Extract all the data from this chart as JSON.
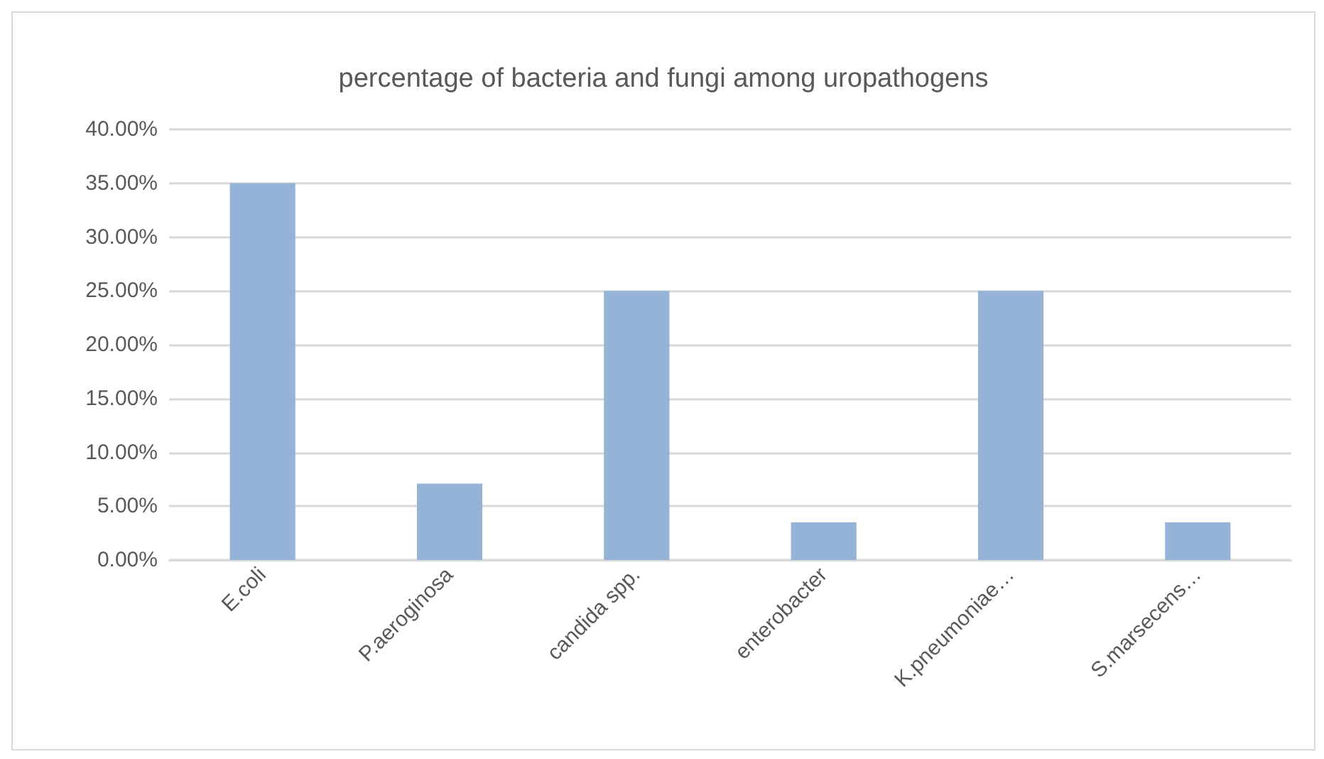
{
  "chart_data": {
    "type": "bar",
    "title": "percentage of bacteria and fungi among uropathogens",
    "categories": [
      "E.coli",
      "P.aeroginosa",
      "candida spp.",
      "enterobacter",
      "K.pneumoniae…",
      "S.marsecens…"
    ],
    "values": [
      35,
      7.1,
      25,
      3.5,
      25,
      3.5
    ],
    "color": "#95b3d7",
    "ylim": [
      0,
      40
    ],
    "yticks": [
      {
        "value": 0,
        "label": "0.00%"
      },
      {
        "value": 5,
        "label": "5.00%"
      },
      {
        "value": 10,
        "label": "10.00%"
      },
      {
        "value": 15,
        "label": "15.00%"
      },
      {
        "value": 20,
        "label": "20.00%"
      },
      {
        "value": 25,
        "label": "25.00%"
      },
      {
        "value": 30,
        "label": "30.00%"
      },
      {
        "value": 35,
        "label": "35.00%"
      },
      {
        "value": 40,
        "label": "40.00%"
      }
    ],
    "grid": "y"
  }
}
